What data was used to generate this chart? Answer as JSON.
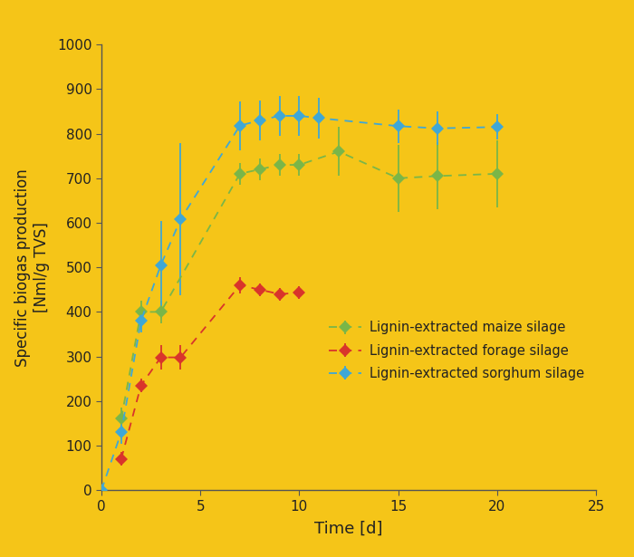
{
  "background_color": "#F5C518",
  "maize": {
    "x": [
      1,
      2,
      3,
      7,
      8,
      9,
      10,
      12,
      15,
      17,
      20
    ],
    "y": [
      160,
      400,
      400,
      710,
      720,
      730,
      730,
      760,
      700,
      705,
      710
    ],
    "yerr": [
      25,
      25,
      25,
      25,
      25,
      25,
      25,
      55,
      75,
      75,
      75
    ],
    "color": "#7ab648",
    "label": "Lignin-extracted maize silage"
  },
  "forage": {
    "x": [
      1,
      2,
      3,
      4,
      7,
      8,
      9,
      10
    ],
    "y": [
      70,
      235,
      298,
      298,
      460,
      450,
      440,
      443
    ],
    "yerr": [
      15,
      15,
      28,
      28,
      18,
      14,
      14,
      14
    ],
    "color": "#d9342b",
    "label": "Lignin-extracted forage silage"
  },
  "sorghum": {
    "x": [
      0,
      1,
      2,
      3,
      4,
      7,
      8,
      9,
      10,
      11,
      15,
      17,
      20
    ],
    "y": [
      0,
      130,
      380,
      505,
      608,
      818,
      830,
      840,
      840,
      835,
      817,
      812,
      815
    ],
    "yerr": [
      0,
      25,
      25,
      100,
      170,
      55,
      45,
      45,
      45,
      45,
      38,
      38,
      28
    ],
    "color": "#3fa7d6",
    "label": "Lignin-extracted sorghum silage"
  },
  "xlabel": "Time [d]",
  "ylabel": "Specific biogas production\n[Nml/g TVS]",
  "xlim": [
    0,
    25
  ],
  "ylim": [
    0,
    1000
  ],
  "xticks": [
    0,
    5,
    10,
    15,
    20,
    25
  ],
  "yticks": [
    0,
    100,
    200,
    300,
    400,
    500,
    600,
    700,
    800,
    900,
    1000
  ]
}
